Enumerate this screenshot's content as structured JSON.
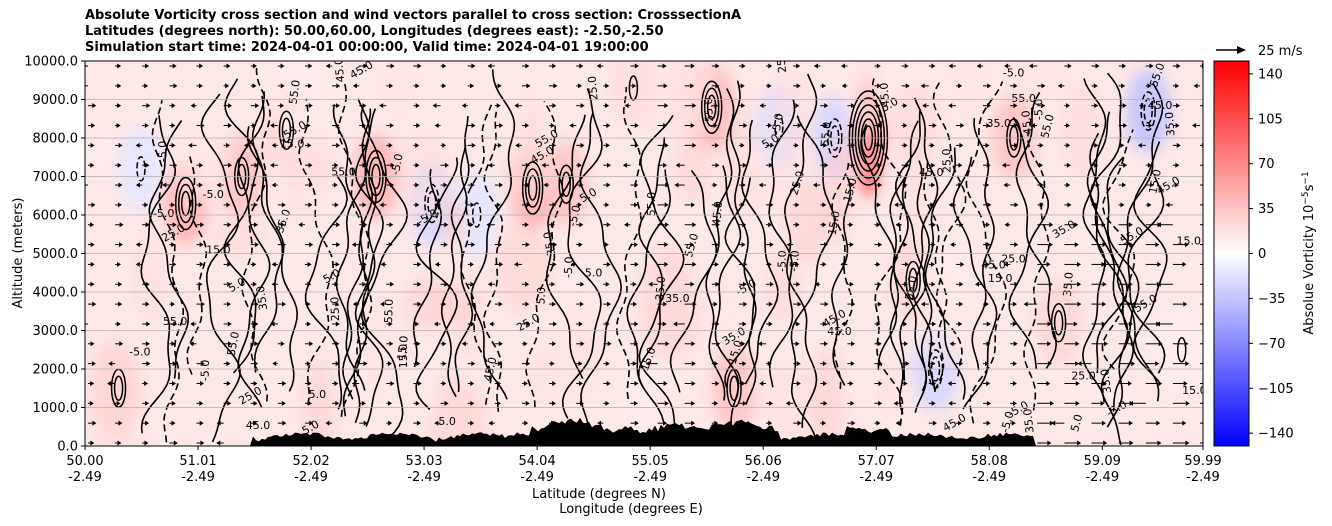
{
  "chart_data": {
    "type": "heatmap",
    "title_lines": [
      "Absolute Vorticity cross section and wind vectors parallel to cross section: CrosssectionA",
      "Latitudes (degrees north): 50.00,60.00, Longitudes (degrees east): -2.50,-2.50",
      "Simulation start time: 2024-04-01 00:00:00, Valid time: 2024-04-01 19:00:00"
    ],
    "xlabel": "Latitude (degrees N)",
    "xlabel2": "Longitude (degrees E)",
    "ylabel": "Altitude (meters)",
    "xlim": [
      50.0,
      59.99
    ],
    "ylim": [
      0,
      10000
    ],
    "x_tick_values": [
      50.0,
      51.01,
      52.02,
      53.03,
      54.04,
      55.05,
      56.06,
      57.07,
      58.08,
      59.09,
      59.99
    ],
    "x_tick_labels": [
      "50.00",
      "51.01",
      "52.02",
      "53.03",
      "54.04",
      "55.05",
      "56.06",
      "57.07",
      "58.08",
      "59.09",
      "59.99"
    ],
    "x_tick_labels2": [
      "-2.49",
      "-2.49",
      "-2.49",
      "-2.49",
      "-2.49",
      "-2.49",
      "-2.49",
      "-2.49",
      "-2.49",
      "-2.49",
      "-2.49"
    ],
    "y_ticks": [
      0,
      1000,
      2000,
      3000,
      4000,
      5000,
      6000,
      7000,
      8000,
      9000,
      10000
    ],
    "y_tick_labels": [
      "0.0",
      "1000.0",
      "2000.0",
      "3000.0",
      "4000.0",
      "5000.0",
      "6000.0",
      "7000.0",
      "8000.0",
      "9000.0",
      "10000.0"
    ],
    "grid": "horizontal",
    "colorbar": {
      "label": "Absolue Vorticity 10$^{-5}$s$^{-1}$",
      "label_main": "Absolue Vorticity 10",
      "label_exp": "−5",
      "label_unit": "s",
      "label_unit_exp": "−1",
      "ticks": [
        140,
        105,
        70,
        35,
        0,
        -35,
        -70,
        -105,
        -140
      ],
      "tick_labels": [
        "140",
        "105",
        "70",
        "35",
        "0",
        "−35",
        "−70",
        "−105",
        "−140"
      ],
      "range": [
        -150,
        150
      ],
      "colormap": "bwr",
      "color_low": "#0000ff",
      "color_mid": "#ffffff",
      "color_high": "#ff0000"
    },
    "quiver_key": {
      "label": "25 m/s",
      "magnitude": 25
    },
    "contour_levels_labeled": [
      "-5.0",
      "5.0",
      "15.0",
      "25.0",
      "35.0",
      "45.0",
      "55.0"
    ],
    "vorticity_features": [
      {
        "lat": 50.3,
        "alt": 1500,
        "value": 25
      },
      {
        "lat": 50.5,
        "alt": 7200,
        "value": -15
      },
      {
        "lat": 50.9,
        "alt": 6300,
        "value": 45
      },
      {
        "lat": 51.4,
        "alt": 7000,
        "value": 35
      },
      {
        "lat": 51.8,
        "alt": 8200,
        "value": 25
      },
      {
        "lat": 52.6,
        "alt": 7000,
        "value": 45
      },
      {
        "lat": 53.1,
        "alt": 6300,
        "value": -25
      },
      {
        "lat": 53.5,
        "alt": 6000,
        "value": -15
      },
      {
        "lat": 54.0,
        "alt": 6700,
        "value": 45
      },
      {
        "lat": 54.3,
        "alt": 6800,
        "value": 35
      },
      {
        "lat": 54.9,
        "alt": 9300,
        "value": 20
      },
      {
        "lat": 55.6,
        "alt": 8800,
        "value": 45
      },
      {
        "lat": 55.8,
        "alt": 1500,
        "value": 35
      },
      {
        "lat": 56.2,
        "alt": 8300,
        "value": -20
      },
      {
        "lat": 56.7,
        "alt": 8000,
        "value": -25
      },
      {
        "lat": 57.0,
        "alt": 8000,
        "value": 100
      },
      {
        "lat": 57.4,
        "alt": 4300,
        "value": 25
      },
      {
        "lat": 57.6,
        "alt": 2000,
        "value": -25
      },
      {
        "lat": 58.3,
        "alt": 8000,
        "value": 35
      },
      {
        "lat": 58.7,
        "alt": 3200,
        "value": 25
      },
      {
        "lat": 59.5,
        "alt": 8700,
        "value": -35
      },
      {
        "lat": 59.8,
        "alt": 2500,
        "value": 10
      }
    ],
    "wind_vectors_direction": "parallel to cross section (mostly eastward/positive, strongest at 59.09–59.99)"
  }
}
